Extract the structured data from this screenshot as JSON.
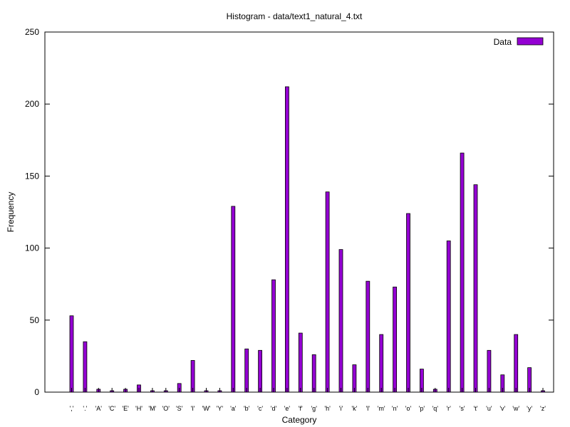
{
  "chart_data": {
    "type": "bar",
    "title": "Histogram - data/text1_natural_4.txt",
    "xlabel": "Category",
    "ylabel": "Frequency",
    "ylim": [
      0,
      250
    ],
    "yticks": [
      0,
      50,
      100,
      150,
      200,
      250
    ],
    "legend_position": "top-right",
    "grid": false,
    "categories": [
      "','",
      "'.'",
      "'A'",
      "'C'",
      "'E'",
      "'H'",
      "'M'",
      "'O'",
      "'S'",
      "'I'",
      "'W'",
      "'Y'",
      "'a'",
      "'b'",
      "'c'",
      "'d'",
      "'e'",
      "'f'",
      "'g'",
      "'h'",
      "'i'",
      "'k'",
      "'l'",
      "'m'",
      "'n'",
      "'o'",
      "'p'",
      "'q'",
      "'r'",
      "'s'",
      "'t'",
      "'u'",
      "'v'",
      "'w'",
      "'y'",
      "'z'"
    ],
    "series": [
      {
        "name": "Data",
        "color": "#9400D3",
        "values": [
          53,
          35,
          2,
          1,
          2,
          5,
          1,
          1,
          6,
          22,
          1,
          1,
          129,
          30,
          29,
          78,
          212,
          41,
          26,
          139,
          99,
          19,
          77,
          40,
          73,
          124,
          16,
          2,
          105,
          166,
          144,
          29,
          12,
          40,
          17,
          1
        ]
      }
    ]
  }
}
